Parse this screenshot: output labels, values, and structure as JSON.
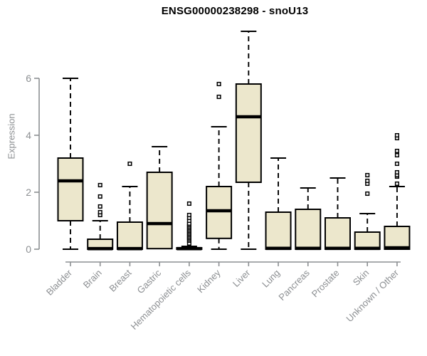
{
  "colors": {
    "box_fill": "#ECE7CC",
    "box_stroke": "#000000",
    "median": "#000000",
    "axis": "#8c8f92",
    "tick_label": "#8c8f92",
    "title": "#000000"
  },
  "chart_data": {
    "type": "boxplot",
    "title": "ENSG00000238298 - snoU13",
    "ylabel": "Expression",
    "xlabel": "",
    "ylim": [
      0,
      6
    ],
    "yticks": [
      0,
      2,
      4,
      6
    ],
    "ytick_labels": [
      "0",
      "2",
      "4",
      "6"
    ],
    "grid": false,
    "categories": [
      "Bladder",
      "Brain",
      "Breast",
      "Gastric",
      "Hematopoietic cells",
      "Kidney",
      "Liver",
      "Lung",
      "Pancreas",
      "Prostate",
      "Skin",
      "Unknown / Other"
    ],
    "series": [
      {
        "name": "Bladder",
        "low": 0,
        "q1": 1.0,
        "median": 2.4,
        "q3": 3.2,
        "high": 6.0,
        "outliers": []
      },
      {
        "name": "Brain",
        "low": 0,
        "q1": 0,
        "median": 0.02,
        "q3": 0.35,
        "high": 1.0,
        "outliers": [
          1.2,
          1.3,
          1.5,
          1.85,
          2.25
        ]
      },
      {
        "name": "Breast",
        "low": 0,
        "q1": 0,
        "median": 0.02,
        "q3": 0.95,
        "high": 2.2,
        "outliers": [
          3.0
        ]
      },
      {
        "name": "Gastric",
        "low": 0,
        "q1": 0.02,
        "median": 0.9,
        "q3": 2.7,
        "high": 3.6,
        "outliers": []
      },
      {
        "name": "Hematopoietic cells",
        "low": 0,
        "q1": 0,
        "median": 0.02,
        "q3": 0.05,
        "high": 0.1,
        "outliers": [
          0.2,
          0.3,
          0.35,
          0.4,
          0.45,
          0.5,
          0.55,
          0.6,
          0.65,
          0.7,
          0.75,
          0.8,
          0.85,
          0.9,
          1.0,
          1.1,
          1.2,
          1.6
        ]
      },
      {
        "name": "Kidney",
        "low": 0,
        "q1": 0.38,
        "median": 1.35,
        "q3": 2.2,
        "high": 4.3,
        "outliers": [
          5.35,
          5.8
        ]
      },
      {
        "name": "Liver",
        "low": 0,
        "q1": 2.35,
        "median": 4.65,
        "q3": 5.8,
        "high": 7.65,
        "outliers": []
      },
      {
        "name": "Lung",
        "low": 0,
        "q1": 0,
        "median": 0.03,
        "q3": 1.3,
        "high": 3.2,
        "outliers": []
      },
      {
        "name": "Pancreas",
        "low": 0,
        "q1": 0,
        "median": 0.03,
        "q3": 1.4,
        "high": 2.15,
        "outliers": []
      },
      {
        "name": "Prostate",
        "low": 0,
        "q1": 0,
        "median": 0.03,
        "q3": 1.1,
        "high": 2.5,
        "outliers": []
      },
      {
        "name": "Skin",
        "low": 0,
        "q1": 0,
        "median": 0.03,
        "q3": 0.6,
        "high": 1.25,
        "outliers": [
          1.95,
          2.3,
          2.4,
          2.6
        ]
      },
      {
        "name": "Unknown / Other",
        "low": 0,
        "q1": 0,
        "median": 0.05,
        "q3": 0.8,
        "high": 2.2,
        "outliers": [
          2.3,
          2.55,
          2.6,
          2.7,
          3.0,
          3.3,
          3.45,
          3.9,
          4.0
        ]
      }
    ]
  }
}
